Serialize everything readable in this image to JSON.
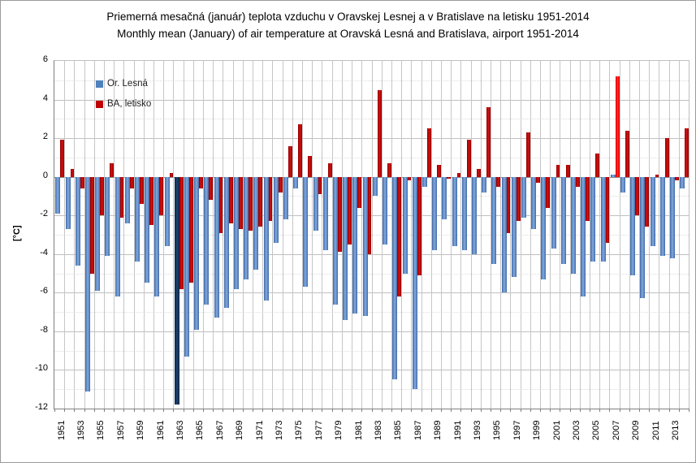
{
  "title": {
    "line1": "Priemerná mesačná (január) teplota vzduchu v Oravskej Lesnej a v Bratislave na letisku 1951-2014",
    "line2": "Monthly mean (January) of air temperature at Oravská Lesná and Bratislava, airport 1951-2014"
  },
  "legend": [
    {
      "label": "Or. Lesná",
      "color": "#4F81BD"
    },
    {
      "label": "BA, letisko",
      "color": "#C00000"
    }
  ],
  "y_axis": {
    "unit_label": "[°C]",
    "ticks": [
      6,
      4,
      2,
      0,
      -2,
      -4,
      -6,
      -8,
      -10,
      -12
    ],
    "max": 6,
    "min": -12
  },
  "x_axis": {
    "tick_labels": [
      "1951",
      "1953",
      "1955",
      "1957",
      "1959",
      "1961",
      "1963",
      "1965",
      "1967",
      "1969",
      "1971",
      "1973",
      "1975",
      "1977",
      "1979",
      "1981",
      "1983",
      "1985",
      "1987",
      "1989",
      "1991",
      "1993",
      "1995",
      "1997",
      "1999",
      "2001",
      "2003",
      "2005",
      "2007",
      "2009",
      "2011",
      "2013"
    ]
  },
  "chart_data": {
    "type": "bar",
    "title": "Priemerná mesačná (január) teplota vzduchu v Oravskej Lesnej a v Bratislave na letisku 1951-2014 / Monthly mean (January) of air temperature at Oravská Lesná and Bratislava, airport 1951-2014",
    "xlabel": "",
    "ylabel": "[°C]",
    "ylim": [
      -12,
      6
    ],
    "grid": true,
    "legend_position": "top-left-inside",
    "categories": [
      1951,
      1952,
      1953,
      1954,
      1955,
      1956,
      1957,
      1958,
      1959,
      1960,
      1961,
      1962,
      1963,
      1964,
      1965,
      1966,
      1967,
      1968,
      1969,
      1970,
      1971,
      1972,
      1973,
      1974,
      1975,
      1976,
      1977,
      1978,
      1979,
      1980,
      1981,
      1982,
      1983,
      1984,
      1985,
      1986,
      1987,
      1988,
      1989,
      1990,
      1991,
      1992,
      1993,
      1994,
      1995,
      1996,
      1997,
      1998,
      1999,
      2000,
      2001,
      2002,
      2003,
      2004,
      2005,
      2006,
      2007,
      2008,
      2009,
      2010,
      2011,
      2012,
      2013,
      2014
    ],
    "series": [
      {
        "name": "Or. Lesná",
        "color": "#4F81BD",
        "highlight": {
          "year": 1963,
          "color": "#17375E",
          "note": "darkest (record cold) bar drawn in dark navy"
        },
        "values": [
          -1.9,
          -2.7,
          -4.6,
          -11.1,
          -5.9,
          -4.1,
          -6.2,
          -2.4,
          -4.4,
          -5.5,
          -6.2,
          -3.6,
          -11.8,
          -9.3,
          -7.9,
          -6.6,
          -7.3,
          -6.8,
          -5.8,
          -5.3,
          -4.8,
          -6.4,
          -3.4,
          -2.2,
          -0.6,
          -5.7,
          -2.8,
          -3.8,
          -6.6,
          -7.4,
          -7.1,
          -7.2,
          -1.0,
          -3.5,
          -10.5,
          -5.0,
          -11.0,
          -0.5,
          -3.8,
          -2.2,
          -3.6,
          -3.8,
          -4.0,
          -0.8,
          -4.5,
          -6.0,
          -5.2,
          -2.1,
          -2.7,
          -5.3,
          -3.7,
          -4.5,
          -5.0,
          -6.2,
          -4.4,
          -4.4,
          0.1,
          -0.8,
          -5.1,
          -6.3,
          -3.6,
          -4.1,
          -4.2,
          -0.6
        ]
      },
      {
        "name": "BA, letisko",
        "color": "#C00000",
        "highlight": {
          "year": 2007,
          "color": "#FF0000",
          "note": "warmest (record warm) bar drawn in bright red"
        },
        "values": [
          1.9,
          0.4,
          -0.6,
          -5.0,
          -2.0,
          0.7,
          -2.1,
          -0.6,
          -1.4,
          -2.5,
          -2.0,
          0.2,
          -5.8,
          -5.5,
          -0.6,
          -1.2,
          -2.9,
          -2.4,
          -2.7,
          -2.8,
          -2.6,
          -2.3,
          -0.8,
          1.6,
          2.7,
          1.1,
          -0.9,
          0.7,
          -3.9,
          -3.5,
          -1.6,
          -4.0,
          4.5,
          0.7,
          -6.2,
          -0.2,
          -5.1,
          2.5,
          0.6,
          -0.1,
          0.2,
          1.9,
          0.4,
          3.6,
          -0.5,
          -2.9,
          -2.3,
          2.3,
          -0.3,
          -1.6,
          0.6,
          0.6,
          -0.5,
          -2.3,
          1.2,
          -3.4,
          5.2,
          2.4,
          -2.0,
          -2.6,
          0.1,
          2.0,
          -0.2,
          2.5
        ]
      }
    ]
  }
}
